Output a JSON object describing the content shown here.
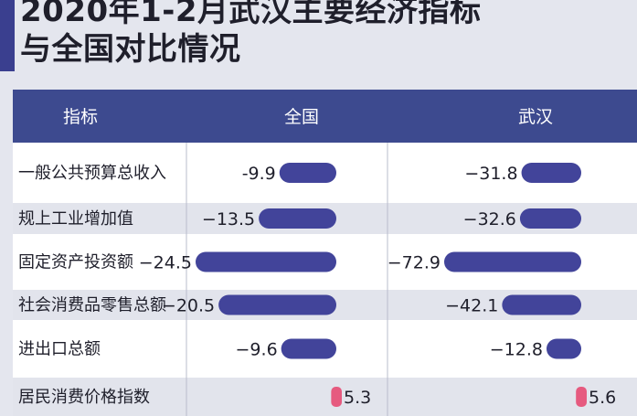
{
  "title_lines": [
    "2020年1-2月武汉主要经济指标",
    "与全国对比情况"
  ],
  "colors": {
    "header_bg": "#3d4a8f",
    "negative_bar": "#42449a",
    "positive_bar": "#e65a7f",
    "row_band": "#e2e4ec",
    "row_white": "#ffffff",
    "title_accent": "#3a3f8f"
  },
  "table": {
    "headers": [
      "指标",
      "全国",
      "武汉"
    ]
  },
  "chart_data": {
    "type": "bar",
    "title": "2020年1-2月武汉主要经济指标与全国对比情况",
    "categories": [
      "一般公共预算总收入",
      "规上工业增加值",
      "固定资产投资额",
      "社会消费品零售总额",
      "进出口总额",
      "居民消费价格指数"
    ],
    "series": [
      {
        "name": "全国",
        "values": [
          -9.9,
          -13.5,
          -24.5,
          -20.5,
          -9.6,
          5.3
        ],
        "labels": [
          "-9.9",
          "−13.5",
          "−24.5",
          "−20.5",
          "−9.6",
          "5.3"
        ]
      },
      {
        "name": "武汉",
        "values": [
          -31.8,
          -32.6,
          -72.9,
          -42.1,
          -12.8,
          5.6
        ],
        "labels": [
          "−31.8",
          "−32.6",
          "−72.9",
          "−42.1",
          "−12.8",
          "5.6"
        ]
      }
    ]
  }
}
